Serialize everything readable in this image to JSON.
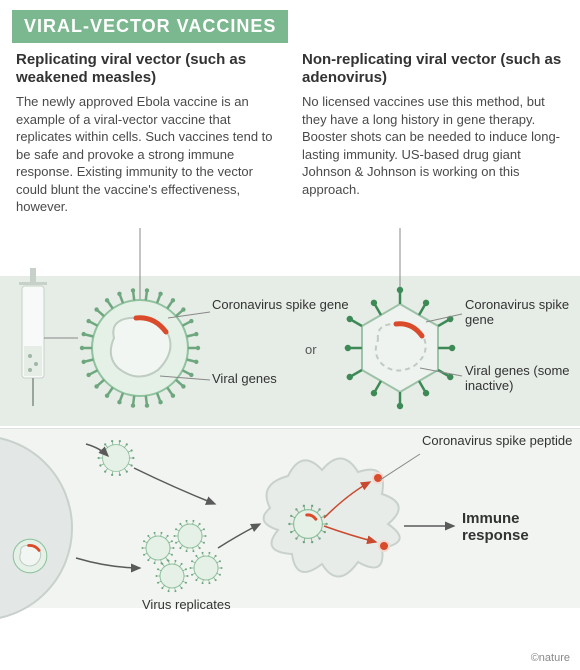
{
  "header": {
    "title": "VIRAL-VECTOR VACCINES",
    "bg_color": "#7cb88f",
    "text_color": "#ffffff",
    "font_size": 18
  },
  "columns": {
    "left": {
      "heading": "Replicating viral vector (such as weakened measles)",
      "body": "The newly approved Ebola vaccine is an example of a viral-vector vaccine that replicates within cells. Such vaccines tend to be safe and provoke a strong immune response. Existing immunity to the vector could blunt the vaccine's effectiveness, however."
    },
    "right": {
      "heading": "Non-replicating viral vector (such as adenovirus)",
      "body": "No licensed vaccines use this method, but they have a long history in gene therapy. Booster shots can be needed to induce long-lasting immunity. US-based drug giant Johnson & Johnson is working on this approach."
    },
    "heading_fontsize": 15,
    "body_fontsize": 13,
    "heading_color": "#333333",
    "body_color": "#4a4a4a"
  },
  "diagram": {
    "band_top_color": "#e6ece6",
    "band_bottom_color": "#f1f4f1",
    "virus_round": {
      "fill": "#e5f0e7",
      "stroke": "#8fc29e",
      "spike_color": "#6ea77e",
      "gene_ring": "#bfccc2",
      "spike_gene_color": "#d94b2a"
    },
    "virus_hex": {
      "fill": "#eef3ef",
      "stroke": "#9cc2a7",
      "spike_color": "#3d8a56",
      "gene_ring": "#bfccc2",
      "spike_gene_color": "#d94b2a"
    },
    "syringe_color": "#d7e0d8",
    "cell_color": "#e3e8e6",
    "amoeba_fill": "#e8ece9",
    "amoeba_stroke": "#c9d1cc",
    "peptide_color": "#d94b2a",
    "arrow_color": "#5a5a5a",
    "red_arrow_color": "#c94a2f",
    "pointer_color": "#888888"
  },
  "labels": {
    "spike_gene": "Coronavirus spike gene",
    "viral_genes": "Viral genes",
    "viral_genes_inactive": "Viral genes (some inactive)",
    "or": "or",
    "spike_peptide": "Coronavirus spike peptide",
    "immune_response": "Immune response",
    "virus_replicates": "Virus replicates"
  },
  "copyright": "©nature"
}
